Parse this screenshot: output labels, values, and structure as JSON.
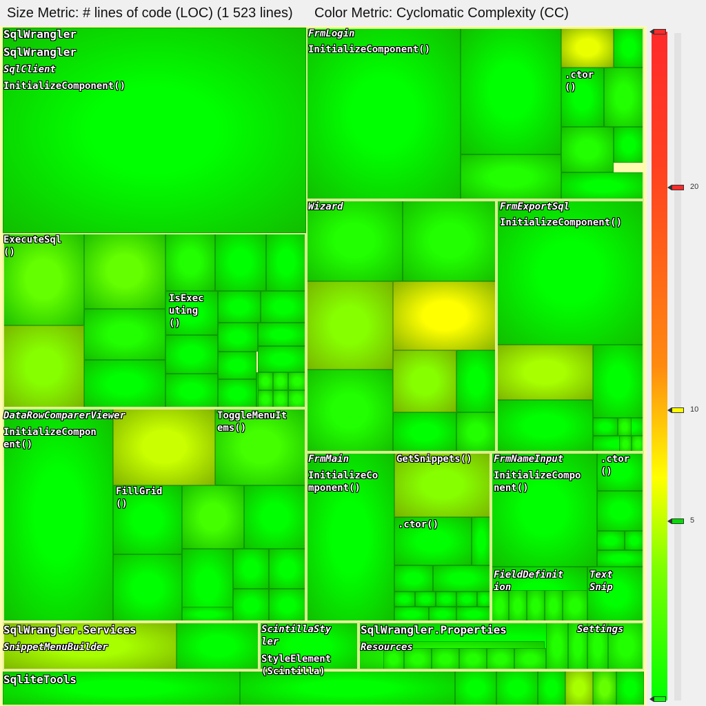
{
  "header": {
    "size_metric": "Size Metric: # lines of code (LOC) (1 523 lines)",
    "color_metric": "Color Metric: Cyclomatic Complexity (CC)"
  },
  "legend": {
    "gradient_colors": [
      "#ff2a2a",
      "#ff8a10",
      "#ffff00",
      "#80ff00",
      "#00ff00"
    ],
    "markers": [
      {
        "value": 27,
        "color": "#ff2a2a",
        "label": ""
      },
      {
        "value": 20,
        "color": "#ff2a2a",
        "label": "20"
      },
      {
        "value": 10,
        "color": "#ffff00",
        "label": "10"
      },
      {
        "value": 5,
        "color": "#00dd00",
        "label": "5"
      },
      {
        "value": -3,
        "color": "#00ff00",
        "label": ""
      }
    ]
  },
  "chart_data": {
    "type": "treemap",
    "size_metric": "lines of code (LOC)",
    "color_metric": "Cyclomatic Complexity (CC)",
    "total_loc": 1523,
    "color_scale": {
      "min": -3,
      "max": 27,
      "ticks": [
        5,
        10,
        20
      ]
    },
    "labels": [
      {
        "text": "SqlWrangler",
        "italic": false
      },
      {
        "text": "SqlWrangler",
        "italic": false
      },
      {
        "text": "SqlClient",
        "italic": true
      },
      {
        "text": "InitializeComponent()",
        "italic": false
      },
      {
        "text": "FrmLogin",
        "italic": true
      },
      {
        "text": "InitializeComponent()",
        "italic": false
      },
      {
        "text": ".ctor\n()",
        "italic": false
      },
      {
        "text": "Wizard",
        "italic": true
      },
      {
        "text": "FrmExportSql",
        "italic": true
      },
      {
        "text": "InitializeComponent()",
        "italic": false
      },
      {
        "text": "ExecuteSql\n()",
        "italic": false
      },
      {
        "text": "IsExec\nuting\n()",
        "italic": false
      },
      {
        "text": "DataRowComparerViewer",
        "italic": true
      },
      {
        "text": "InitializeCompon\nent()",
        "italic": false
      },
      {
        "text": "ToggleMenuIt\nems()",
        "italic": false
      },
      {
        "text": "FillGrid\n()",
        "italic": false
      },
      {
        "text": "FrmMain",
        "italic": true
      },
      {
        "text": "InitializeCo\nmponent()",
        "italic": false
      },
      {
        "text": "GetSnippets()",
        "italic": false
      },
      {
        "text": ".ctor()",
        "italic": false
      },
      {
        "text": "FrmNameInput",
        "italic": true
      },
      {
        "text": "InitializeCompo\nnent()",
        "italic": false
      },
      {
        "text": ".ctor\n()",
        "italic": false
      },
      {
        "text": "FieldDefinit\nion",
        "italic": true
      },
      {
        "text": "Text\nSnip",
        "italic": true
      },
      {
        "text": "SqlWrangler.Services",
        "italic": false
      },
      {
        "text": "SnippetMenuBuilder",
        "italic": true
      },
      {
        "text": "ScintillaSty\nler",
        "italic": true
      },
      {
        "text": "StyleElement\n(Scintilla)",
        "italic": false
      },
      {
        "text": "SqlWrangler.Properties",
        "italic": false
      },
      {
        "text": "Settings",
        "italic": true
      },
      {
        "text": "Resources",
        "italic": true
      },
      {
        "text": "SqliteTools",
        "italic": false
      }
    ],
    "cells": [
      {
        "cc": 3
      },
      {
        "cc": 3
      },
      {
        "cc": 3
      },
      {
        "cc": 4
      },
      {
        "cc": 10
      },
      {
        "cc": 3
      },
      {
        "cc": 3
      },
      {
        "cc": 4
      },
      {
        "cc": 4
      },
      {
        "cc": 3
      },
      {
        "cc": 3
      },
      {
        "cc": 6
      },
      {
        "cc": 7
      },
      {
        "cc": 6
      },
      {
        "cc": 4
      },
      {
        "cc": 3
      },
      {
        "cc": 4
      },
      {
        "cc": 3
      },
      {
        "cc": 3
      },
      {
        "cc": 3
      },
      {
        "cc": 3
      },
      {
        "cc": 3
      },
      {
        "cc": 3
      },
      {
        "cc": 3
      },
      {
        "cc": 3
      },
      {
        "cc": 3
      },
      {
        "cc": 3
      },
      {
        "cc": 3
      },
      {
        "cc": 3
      },
      {
        "cc": 3
      },
      {
        "cc": 4
      },
      {
        "cc": 4
      },
      {
        "cc": 7
      },
      {
        "cc": 11
      },
      {
        "cc": 4
      },
      {
        "cc": 7
      },
      {
        "cc": 3
      },
      {
        "cc": 3
      },
      {
        "cc": 4
      },
      {
        "cc": 3
      },
      {
        "cc": 8
      },
      {
        "cc": 3
      },
      {
        "cc": 3
      },
      {
        "cc": 3
      },
      {
        "cc": 3
      },
      {
        "cc": 3
      },
      {
        "cc": 3
      },
      {
        "cc": 9
      },
      {
        "cc": 5
      },
      {
        "cc": 3
      },
      {
        "cc": 5
      },
      {
        "cc": 3
      },
      {
        "cc": 3
      },
      {
        "cc": 3
      },
      {
        "cc": 3
      },
      {
        "cc": 3
      },
      {
        "cc": 3
      },
      {
        "cc": 3
      },
      {
        "cc": 3
      },
      {
        "cc": 3
      },
      {
        "cc": 7
      },
      {
        "cc": 3
      },
      {
        "cc": 3
      },
      {
        "cc": 3
      },
      {
        "cc": 3
      },
      {
        "cc": 3
      },
      {
        "cc": 3
      },
      {
        "cc": 3
      },
      {
        "cc": 3
      },
      {
        "cc": 3
      },
      {
        "cc": 3
      },
      {
        "cc": 3
      },
      {
        "cc": 3
      },
      {
        "cc": 3
      },
      {
        "cc": 3
      },
      {
        "cc": 3
      },
      {
        "cc": 3
      },
      {
        "cc": 3
      },
      {
        "cc": 3
      },
      {
        "cc": 3
      },
      {
        "cc": 3
      },
      {
        "cc": 8
      },
      {
        "cc": 3
      },
      {
        "cc": 3
      },
      {
        "cc": 3
      },
      {
        "cc": 3
      },
      {
        "cc": 3
      },
      {
        "cc": 3
      },
      {
        "cc": 3
      },
      {
        "cc": 3
      },
      {
        "cc": 8
      },
      {
        "cc": 6
      },
      {
        "cc": 3
      },
      {
        "cc": 3
      },
      {
        "cc": 3
      },
      {
        "cc": 3
      },
      {
        "cc": 3
      },
      {
        "cc": 3
      }
    ]
  }
}
